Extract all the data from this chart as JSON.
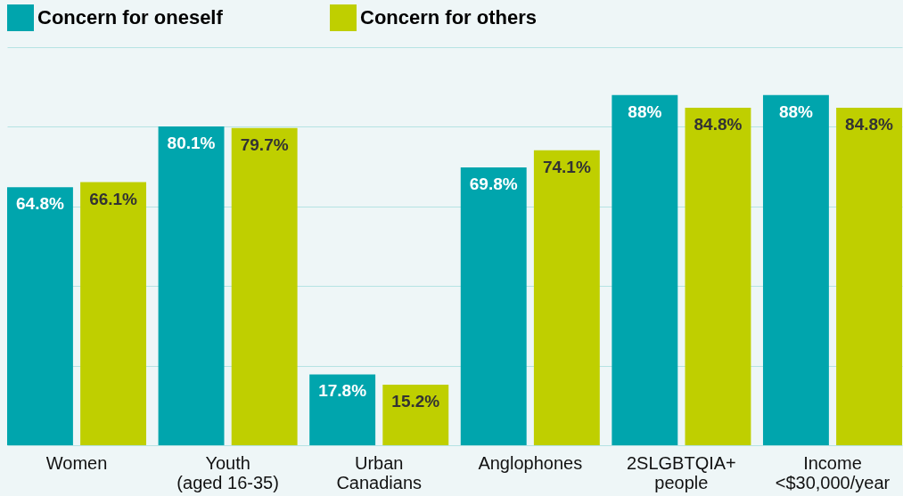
{
  "chart_data": {
    "type": "bar",
    "categories": [
      "Women",
      "Youth\n(aged 16-35)",
      "Urban\nCanadians",
      "Anglophones",
      "2SLGBTQIA+\npeople",
      "Income\n<$30,000/year"
    ],
    "series": [
      {
        "name": "Concern for oneself",
        "color": "#00a5ad",
        "values": [
          64.8,
          80.1,
          17.8,
          69.8,
          88,
          88
        ],
        "value_labels": [
          "64.8%",
          "80.1%",
          "17.8%",
          "69.8%",
          "88%",
          "88%"
        ]
      },
      {
        "name": "Concern for others",
        "color": "#bfcf00",
        "values": [
          66.1,
          79.7,
          15.2,
          74.1,
          84.8,
          84.8
        ],
        "value_labels": [
          "66.1%",
          "79.7%",
          "15.2%",
          "74.1%",
          "84.8%",
          "84.8%"
        ]
      }
    ],
    "ylim": [
      0,
      100
    ],
    "yticks": [
      {
        "value": 0,
        "label": null
      },
      {
        "value": 20,
        "label": null
      },
      {
        "value": 40,
        "label": null
      },
      {
        "value": 60,
        "label": null
      },
      {
        "value": 80,
        "label": null
      },
      {
        "value": 100,
        "label": null
      }
    ],
    "grid": "y",
    "legend": "top",
    "tick_labels": "x"
  }
}
